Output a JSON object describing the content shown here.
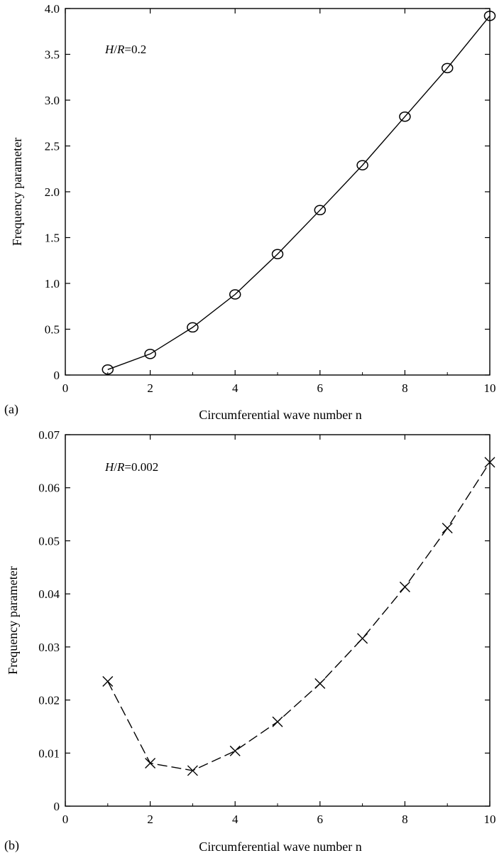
{
  "chart_data": [
    {
      "type": "line",
      "panel_label": "(a)",
      "xlabel": "Circumferential wave number n",
      "ylabel": "Frequency parameter",
      "annotation": {
        "var_num": "H",
        "slash": "/",
        "var_den": "R",
        "eq": "=",
        "value": "0.2"
      },
      "xlim": [
        0,
        10
      ],
      "ylim": [
        0,
        4.0
      ],
      "xticks": [
        "0",
        "2",
        "4",
        "6",
        "8",
        "10"
      ],
      "yticks": [
        "0",
        "0.5",
        "1.0",
        "1.5",
        "2.0",
        "2.5",
        "3.0",
        "3.5",
        "4.0"
      ],
      "grid": false,
      "series": [
        {
          "line_style": "solid",
          "marker": "circle",
          "x": [
            1,
            2,
            3,
            4,
            5,
            6,
            7,
            8,
            9,
            10
          ],
          "y": [
            0.06,
            0.23,
            0.52,
            0.88,
            1.32,
            1.8,
            2.29,
            2.82,
            3.35,
            3.92
          ]
        }
      ]
    },
    {
      "type": "line",
      "panel_label": "(b)",
      "xlabel": "Circumferential wave number n",
      "ylabel": "Frequency parameter",
      "annotation": {
        "var_num": "H",
        "slash": "/",
        "var_den": "R",
        "eq": "=",
        "value": "0.002"
      },
      "xlim": [
        0,
        10
      ],
      "ylim": [
        0,
        0.07
      ],
      "xticks": [
        "0",
        "2",
        "4",
        "6",
        "8",
        "10"
      ],
      "yticks": [
        "0",
        "0.01",
        "0.02",
        "0.03",
        "0.04",
        "0.05",
        "0.06",
        "0.07"
      ],
      "grid": false,
      "series": [
        {
          "line_style": "dashed",
          "marker": "cross",
          "x": [
            1,
            2,
            3,
            4,
            5,
            6,
            7,
            8,
            9,
            10
          ],
          "y": [
            0.0235,
            0.0081,
            0.0067,
            0.0104,
            0.0159,
            0.0231,
            0.0316,
            0.0413,
            0.0524,
            0.0648
          ]
        }
      ]
    }
  ]
}
